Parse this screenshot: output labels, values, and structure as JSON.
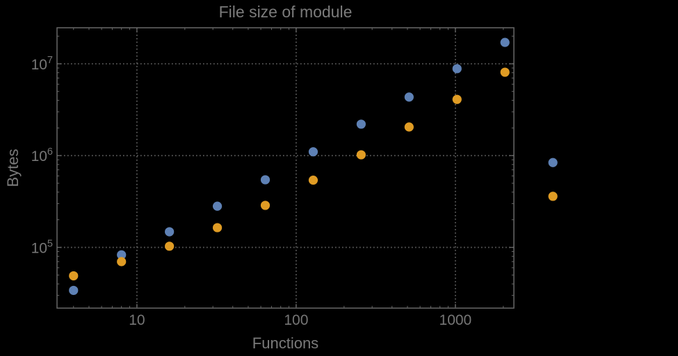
{
  "title": "File size of module",
  "colors": {
    "background": "#000000",
    "frame": "#686868",
    "gridlines": "#616161",
    "tick_labels": "#767676",
    "axis_labels": "#7a7a7a",
    "title": "#7b7b7b",
    "series_blue": "#5E81B5",
    "series_orange": "#E09C24"
  },
  "chart_data": {
    "type": "scatter",
    "title": "File size of module",
    "xlabel": "Functions",
    "ylabel": "Bytes",
    "xscale": "log",
    "yscale": "log",
    "xlim": [
      3.15,
      2330
    ],
    "ylim": [
      21800,
      24700000
    ],
    "grid": "dotted gray lines at decade values",
    "legend": "none",
    "x_major_ticks": [
      10,
      100,
      1000
    ],
    "x_tick_labels": [
      "10",
      "100",
      "1000"
    ],
    "y_major_ticks": [
      {
        "value": 100000,
        "label_base": "10",
        "label_exp": "5"
      },
      {
        "value": 1000000,
        "label_base": "10",
        "label_exp": "6"
      },
      {
        "value": 10000000,
        "label_base": "10",
        "label_exp": "7"
      }
    ],
    "series": [
      {
        "name": "blue",
        "color": "#5E81B5",
        "points": [
          [
            4,
            34000
          ],
          [
            8,
            83000
          ],
          [
            16,
            148000
          ],
          [
            32,
            281000
          ],
          [
            64,
            545000
          ],
          [
            128,
            1100000
          ],
          [
            256,
            2200000
          ],
          [
            512,
            4340000
          ],
          [
            1024,
            8850000
          ],
          [
            2048,
            17100000
          ],
          [
            4096,
            840000
          ]
        ]
      },
      {
        "name": "orange",
        "color": "#E09C24",
        "points": [
          [
            4,
            49000
          ],
          [
            8,
            70000
          ],
          [
            16,
            103000
          ],
          [
            32,
            164000
          ],
          [
            64,
            287000
          ],
          [
            128,
            540000
          ],
          [
            256,
            1020000
          ],
          [
            512,
            2050000
          ],
          [
            1024,
            4100000
          ],
          [
            2048,
            8100000
          ],
          [
            4096,
            360000
          ]
        ]
      }
    ]
  }
}
